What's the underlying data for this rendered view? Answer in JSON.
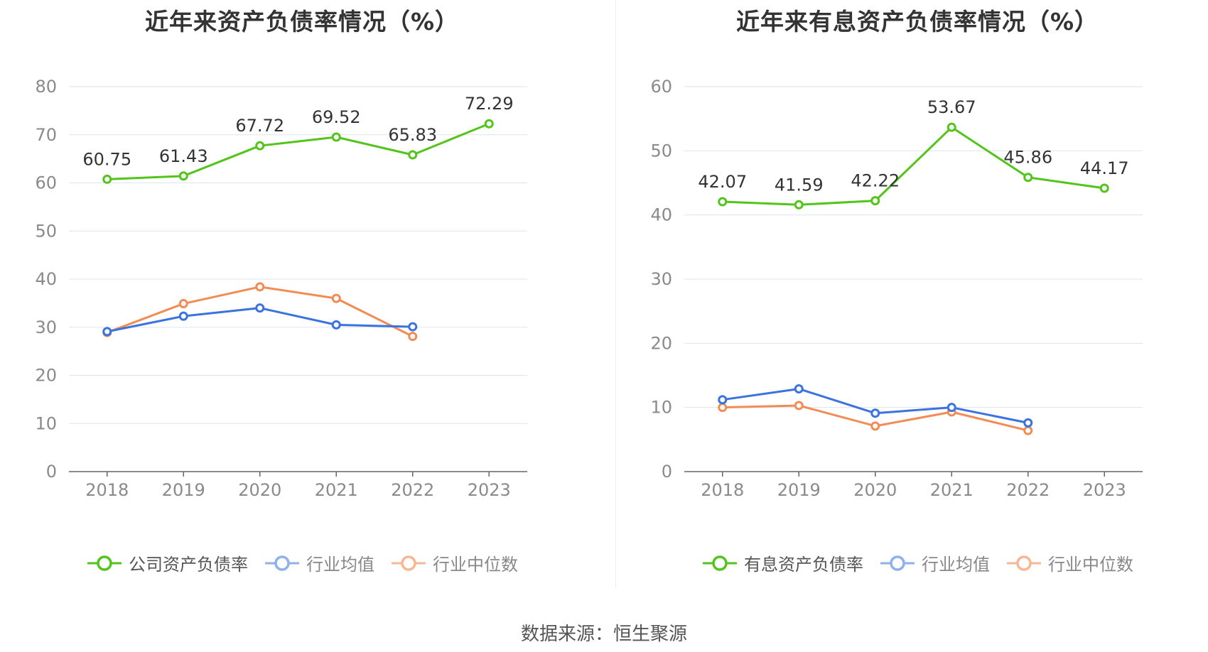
{
  "source_label": "数据来源：恒生聚源",
  "chart_data": [
    {
      "type": "line",
      "title": "近年来资产负债率情况（%）",
      "x": [
        "2018",
        "2019",
        "2020",
        "2021",
        "2022",
        "2023"
      ],
      "ylim": [
        0,
        80
      ],
      "yticks": [
        0,
        10,
        20,
        30,
        40,
        50,
        60,
        70,
        80
      ],
      "grid": true,
      "legend_position": "bottom",
      "series": [
        {
          "name": "公司资产负债率",
          "color": "#52c41a",
          "show_labels": true,
          "values": [
            60.75,
            61.43,
            67.72,
            69.52,
            65.83,
            72.29
          ]
        },
        {
          "name": "行业均值",
          "color": "#3a73e0",
          "legend_color": "#8fb0ee",
          "show_labels": false,
          "values": [
            29.1,
            32.3,
            34.0,
            30.5,
            30.1,
            null
          ]
        },
        {
          "name": "行业中位数",
          "color": "#f28b54",
          "legend_color": "#f7b793",
          "show_labels": false,
          "values": [
            28.9,
            34.9,
            38.4,
            36.0,
            28.1,
            null
          ]
        }
      ]
    },
    {
      "type": "line",
      "title": "近年来有息资产负债率情况（%）",
      "x": [
        "2018",
        "2019",
        "2020",
        "2021",
        "2022",
        "2023"
      ],
      "ylim": [
        0,
        60
      ],
      "yticks": [
        0,
        10,
        20,
        30,
        40,
        50,
        60
      ],
      "grid": true,
      "legend_position": "bottom",
      "series": [
        {
          "name": "有息资产负债率",
          "color": "#52c41a",
          "show_labels": true,
          "values": [
            42.07,
            41.59,
            42.22,
            53.67,
            45.86,
            44.17
          ]
        },
        {
          "name": "行业均值",
          "color": "#3a73e0",
          "legend_color": "#8fb0ee",
          "show_labels": false,
          "values": [
            11.2,
            12.9,
            9.1,
            10.0,
            7.6,
            null
          ]
        },
        {
          "name": "行业中位数",
          "color": "#f28b54",
          "legend_color": "#f7b793",
          "show_labels": false,
          "values": [
            10.0,
            10.3,
            7.1,
            9.3,
            6.4,
            null
          ]
        }
      ]
    }
  ]
}
